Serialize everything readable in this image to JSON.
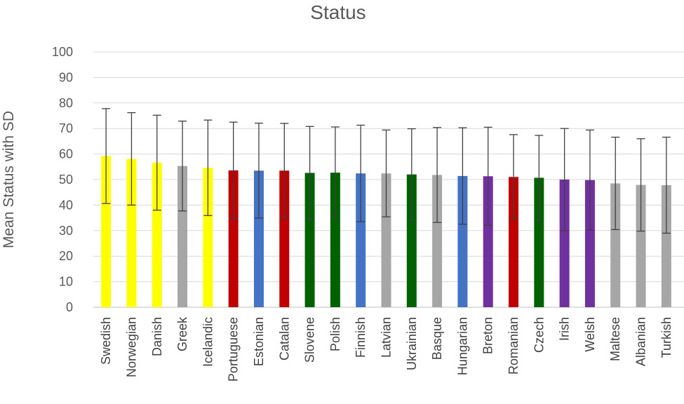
{
  "chart_data": {
    "type": "bar",
    "title": "Status",
    "ylabel": "Mean Status with SD",
    "xlabel": "",
    "ylim": [
      0,
      100
    ],
    "yticks": [
      0,
      10,
      20,
      30,
      40,
      50,
      60,
      70,
      80,
      90,
      100
    ],
    "grid": true,
    "legend": "none",
    "categories": [
      "Swedish",
      "Norwegian",
      "Danish",
      "Greek",
      "Icelandic",
      "Portuguese",
      "Estonian",
      "Catalan",
      "Slovene",
      "Polish",
      "Finnish",
      "Latvian",
      "Ukrainian",
      "Basque",
      "Hungarian",
      "Breton",
      "Romanian",
      "Czech",
      "Irish",
      "Welsh",
      "Maltese",
      "Albanian",
      "Turkish"
    ],
    "values": [
      59.2,
      58.1,
      56.6,
      55.3,
      54.6,
      53.6,
      53.5,
      53.5,
      52.6,
      52.7,
      52.4,
      52.4,
      52.0,
      51.8,
      51.4,
      51.3,
      51.0,
      50.7,
      50.0,
      49.8,
      48.5,
      47.9,
      47.8
    ],
    "sd": [
      18.6,
      18.1,
      18.6,
      17.6,
      18.7,
      18.9,
      18.6,
      18.5,
      18.2,
      17.9,
      18.9,
      17.0,
      17.9,
      18.6,
      18.9,
      19.2,
      16.6,
      16.6,
      20.0,
      19.6,
      18.1,
      18.1,
      18.8
    ],
    "bar_colors": [
      "#ffff00",
      "#ffff00",
      "#ffff00",
      "#a6a6a6",
      "#ffff00",
      "#c00000",
      "#4472c4",
      "#c00000",
      "#006100",
      "#006100",
      "#4472c4",
      "#a6a6a6",
      "#006100",
      "#a6a6a6",
      "#4472c4",
      "#7030a0",
      "#c00000",
      "#006100",
      "#7030a0",
      "#7030a0",
      "#a6a6a6",
      "#a6a6a6",
      "#a6a6a6"
    ]
  }
}
